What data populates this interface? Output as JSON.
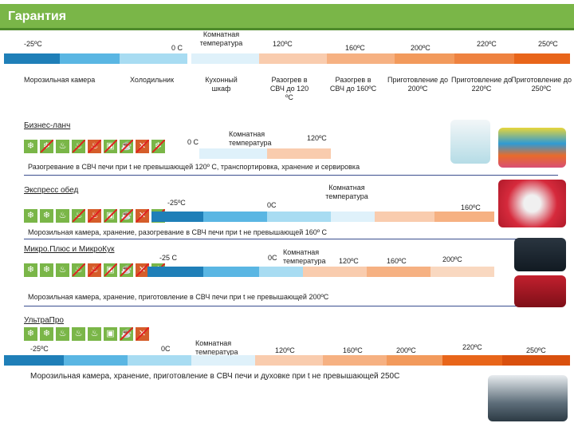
{
  "header": {
    "title": "Гарантия"
  },
  "scale": {
    "temps": [
      "-25ºC",
      "0 C",
      "Комнатная температура",
      "120ºC",
      "160ºC",
      "200ºC",
      "220ºC",
      "250ºC"
    ],
    "places": [
      "Морозильная камера",
      "Холодильник",
      "Кухонный шкаф",
      "Разогрев в СВЧ до 120 ºC",
      "Разогрев в СВЧ до 160ºC",
      "Приготовление до 200ºC",
      "Приготовление до 220ºC",
      "Приготовление до 250ºC"
    ]
  },
  "sections": [
    {
      "title": "Бизнес-ланч",
      "temps": [
        "0 C",
        "Комнатная температура",
        "120ºC"
      ],
      "desc": "Разогревание в СВЧ печи при t не превышающей 120º C, транспортировка, хранение и сервировка"
    },
    {
      "title": "Экспресс обед",
      "temps": [
        "-25ºC",
        "0C",
        "Комнатная температура",
        "160ºC"
      ],
      "desc": "Морозильная камера, хранение, разогревание в СВЧ печи при t не превышающей 160º C"
    },
    {
      "title": "Микро.Плюс и МикроКук",
      "temps": [
        "-25 C",
        "0C",
        "Комнатная температура",
        "120ºC",
        "160ºC",
        "200ºC"
      ],
      "desc": "Морозильная камера, хранение, приготовление в СВЧ печи при t не превышающей 200ºC"
    },
    {
      "title": "УльтраПро",
      "temps": [
        "-25ºC",
        "0C",
        "Комнатная температура",
        "120ºC",
        "160ºC",
        "200ºC",
        "220ºC",
        "250ºC"
      ],
      "desc": "Морозильная камера, хранение, приготовление в СВЧ печи и духовке при t не превышающей 250C"
    }
  ],
  "icons": [
    "❄",
    "❄",
    "❄",
    "♨",
    "♨",
    "♨",
    "☕",
    "▣",
    "✕"
  ]
}
